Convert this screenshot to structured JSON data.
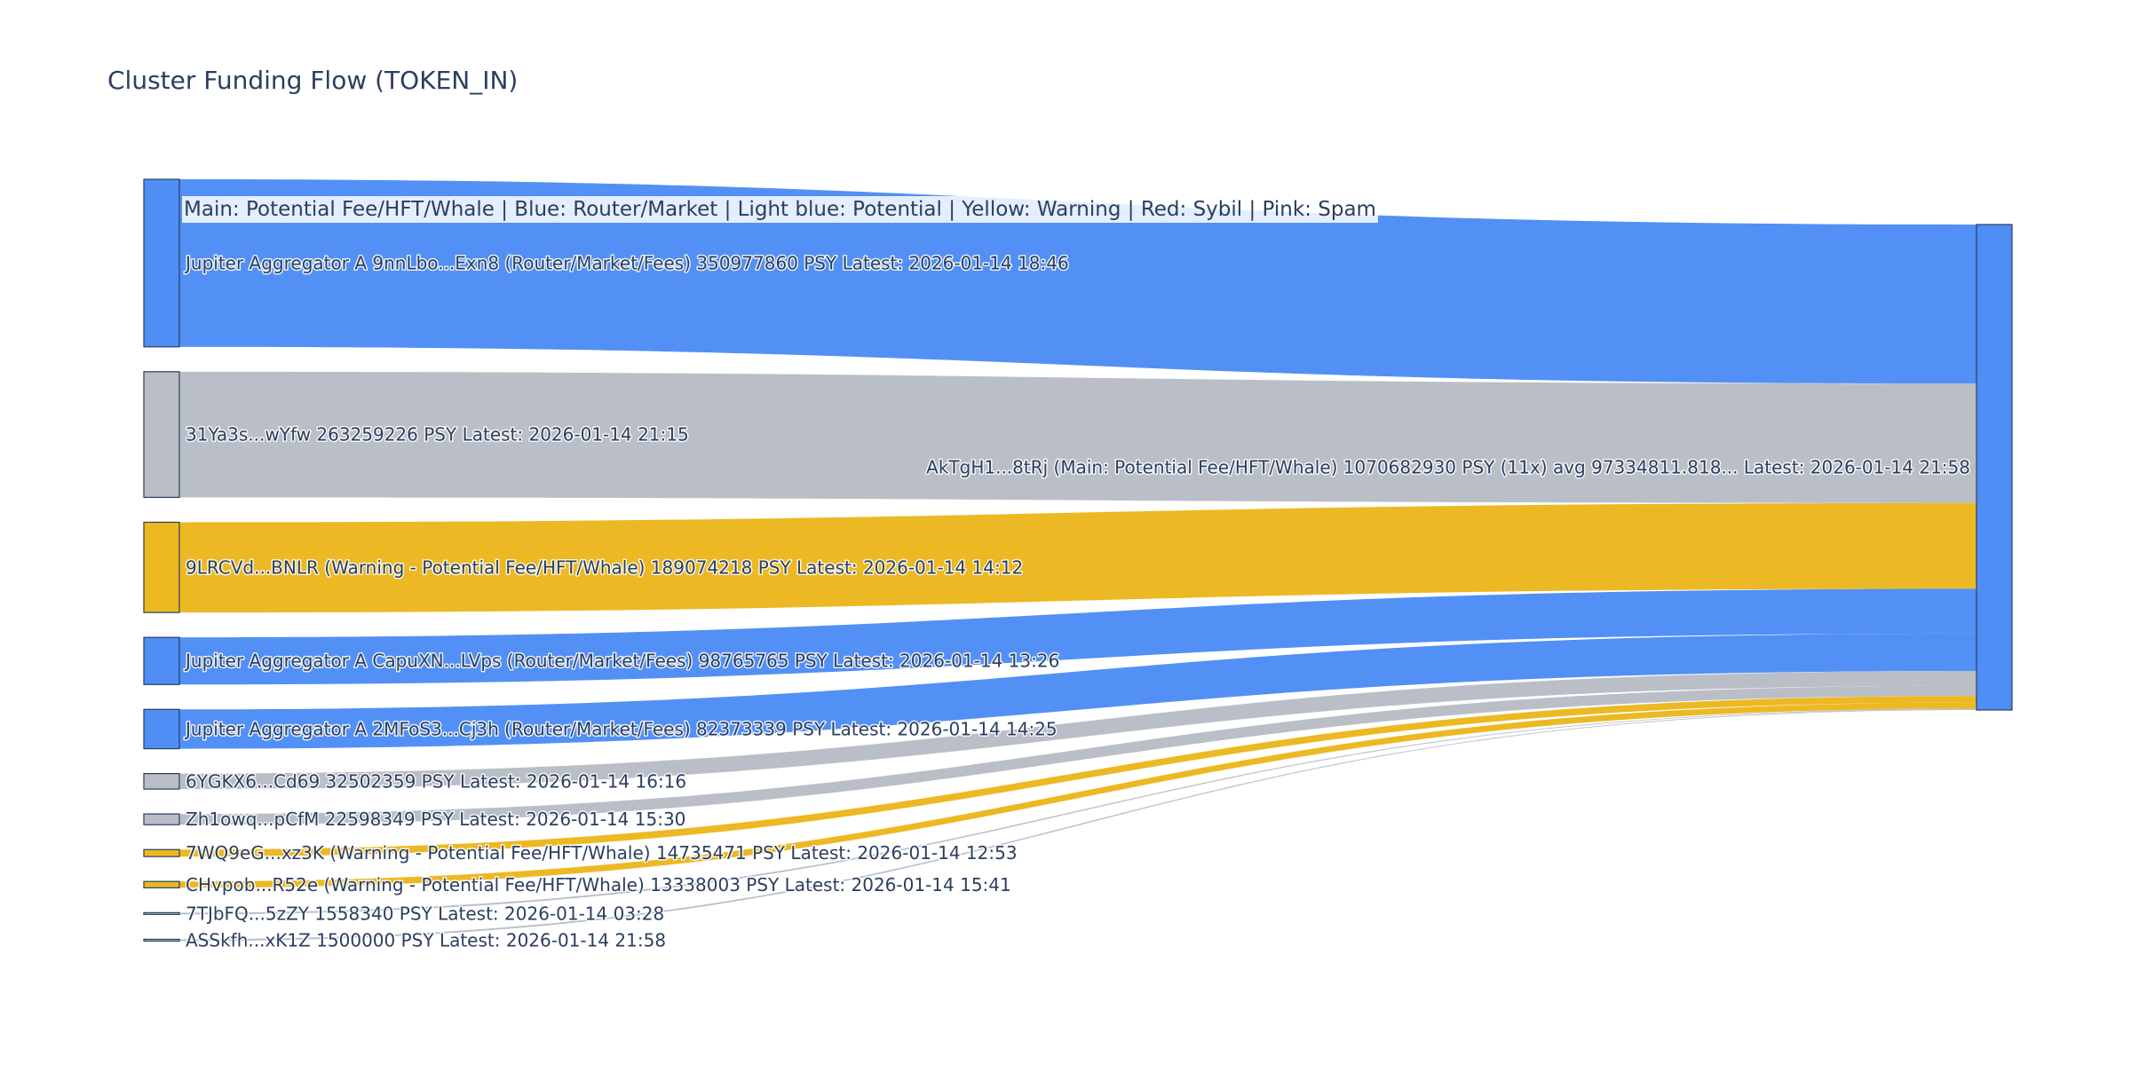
{
  "chart_data": {
    "type": "sankey",
    "title": "Cluster Funding Flow (TOKEN_IN)",
    "annotation": "Main: Potential Fee/HFT/Whale  |  Blue: Router/Market | Light blue: Potential | Yellow: Warning | Red: Sybil | Pink: Spam",
    "colors": {
      "router": "#4f8ef5",
      "neutral": "#b9bdc6",
      "warning": "#ecb820",
      "node_border": "#2a3f5f",
      "text": "#2a3f5f"
    },
    "target": {
      "label": "AkTgH1...8tRj (Main: Potential Fee/HFT/Whale) 1070682930 PSY (11x) avg 97334811.818... Latest: 2026-01-14 21:58",
      "category": "router"
    },
    "sources": [
      {
        "label": "Jupiter Aggregator A 9nnLbo...Exn8 (Router/Market/Fees) 350977860 PSY Latest: 2026-01-14 18:46",
        "value": 350977860,
        "category": "router"
      },
      {
        "label": "31Ya3s...wYfw 263259226 PSY Latest: 2026-01-14 21:15",
        "value": 263259226,
        "category": "neutral"
      },
      {
        "label": "9LRCVd...BNLR (Warning - Potential Fee/HFT/Whale) 189074218 PSY Latest: 2026-01-14 14:12",
        "value": 189074218,
        "category": "warning"
      },
      {
        "label": "Jupiter Aggregator A CapuXN...LVps (Router/Market/Fees) 98765765 PSY Latest: 2026-01-14 13:26",
        "value": 98765765,
        "category": "router"
      },
      {
        "label": "Jupiter Aggregator A 2MFoS3...Cj3h (Router/Market/Fees) 82373339 PSY Latest: 2026-01-14 14:25",
        "value": 82373339,
        "category": "router"
      },
      {
        "label": "6YGKX6...Cd69 32502359 PSY Latest: 2026-01-14 16:16",
        "value": 32502359,
        "category": "neutral"
      },
      {
        "label": "Zh1owq...pCfM 22598349 PSY Latest: 2026-01-14 15:30",
        "value": 22598349,
        "category": "neutral"
      },
      {
        "label": "7WQ9eG...xz3K (Warning - Potential Fee/HFT/Whale) 14735471 PSY Latest: 2026-01-14 12:53",
        "value": 14735471,
        "category": "warning"
      },
      {
        "label": "CHvpob...R52e (Warning - Potential Fee/HFT/Whale) 13338003 PSY Latest: 2026-01-14 15:41",
        "value": 13338003,
        "category": "warning"
      },
      {
        "label": "7TJbFQ...5zZY 1558340 PSY Latest: 2026-01-14 03:28",
        "value": 1558340,
        "category": "neutral"
      },
      {
        "label": "ASSkfh...xK1Z 1500000 PSY Latest: 2026-01-14 21:58",
        "value": 1500000,
        "category": "neutral"
      }
    ]
  }
}
